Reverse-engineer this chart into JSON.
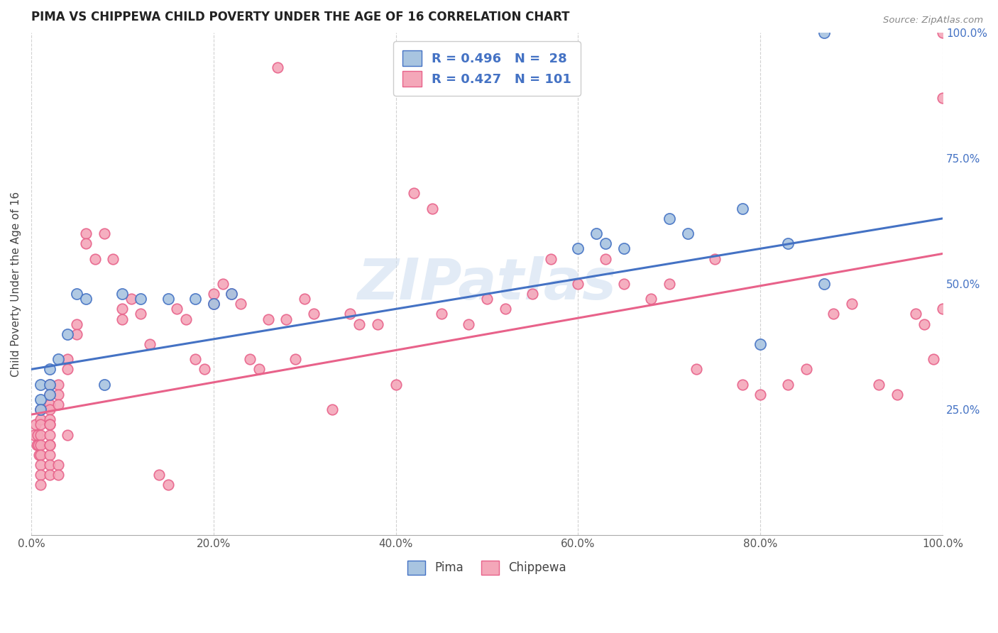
{
  "title": "PIMA VS CHIPPEWA CHILD POVERTY UNDER THE AGE OF 16 CORRELATION CHART",
  "source_text": "Source: ZipAtlas.com",
  "ylabel": "Child Poverty Under the Age of 16",
  "watermark": "ZIPatlas",
  "pima_R": 0.496,
  "pima_N": 28,
  "chippewa_R": 0.427,
  "chippewa_N": 101,
  "pima_color": "#a8c4e0",
  "pima_line_color": "#4472c4",
  "chippewa_color": "#f4a7b9",
  "chippewa_line_color": "#e8628a",
  "legend_text_color": "#4472c4",
  "pima_x": [
    0.01,
    0.01,
    0.01,
    0.02,
    0.02,
    0.02,
    0.03,
    0.04,
    0.05,
    0.06,
    0.08,
    0.1,
    0.12,
    0.15,
    0.18,
    0.2,
    0.22,
    0.6,
    0.62,
    0.63,
    0.65,
    0.7,
    0.72,
    0.78,
    0.8,
    0.83,
    0.87,
    0.87
  ],
  "pima_y": [
    0.3,
    0.27,
    0.25,
    0.33,
    0.3,
    0.28,
    0.35,
    0.4,
    0.48,
    0.47,
    0.3,
    0.48,
    0.47,
    0.47,
    0.47,
    0.46,
    0.48,
    0.57,
    0.6,
    0.58,
    0.57,
    0.63,
    0.6,
    0.65,
    0.38,
    0.58,
    0.5,
    1.0
  ],
  "chippewa_x": [
    0.003,
    0.005,
    0.006,
    0.007,
    0.008,
    0.009,
    0.01,
    0.01,
    0.01,
    0.01,
    0.01,
    0.01,
    0.01,
    0.01,
    0.01,
    0.02,
    0.02,
    0.02,
    0.02,
    0.02,
    0.02,
    0.02,
    0.02,
    0.02,
    0.02,
    0.02,
    0.02,
    0.02,
    0.03,
    0.03,
    0.03,
    0.03,
    0.03,
    0.04,
    0.04,
    0.04,
    0.05,
    0.05,
    0.06,
    0.06,
    0.07,
    0.08,
    0.09,
    0.1,
    0.1,
    0.11,
    0.12,
    0.13,
    0.14,
    0.15,
    0.16,
    0.17,
    0.18,
    0.19,
    0.2,
    0.2,
    0.21,
    0.22,
    0.23,
    0.24,
    0.25,
    0.26,
    0.27,
    0.28,
    0.29,
    0.3,
    0.31,
    0.33,
    0.35,
    0.36,
    0.38,
    0.4,
    0.42,
    0.44,
    0.45,
    0.48,
    0.5,
    0.52,
    0.55,
    0.57,
    0.6,
    0.63,
    0.65,
    0.68,
    0.7,
    0.73,
    0.75,
    0.78,
    0.8,
    0.83,
    0.85,
    0.88,
    0.9,
    0.93,
    0.95,
    0.97,
    0.98,
    0.99,
    1.0,
    1.0,
    1.0
  ],
  "chippewa_y": [
    0.2,
    0.22,
    0.18,
    0.2,
    0.18,
    0.16,
    0.25,
    0.23,
    0.22,
    0.2,
    0.18,
    0.16,
    0.14,
    0.12,
    0.1,
    0.3,
    0.28,
    0.26,
    0.25,
    0.23,
    0.22,
    0.2,
    0.18,
    0.16,
    0.14,
    0.12,
    0.22,
    0.18,
    0.3,
    0.28,
    0.26,
    0.14,
    0.12,
    0.35,
    0.33,
    0.2,
    0.42,
    0.4,
    0.6,
    0.58,
    0.55,
    0.6,
    0.55,
    0.45,
    0.43,
    0.47,
    0.44,
    0.38,
    0.12,
    0.1,
    0.45,
    0.43,
    0.35,
    0.33,
    0.48,
    0.46,
    0.5,
    0.48,
    0.46,
    0.35,
    0.33,
    0.43,
    0.93,
    0.43,
    0.35,
    0.47,
    0.44,
    0.25,
    0.44,
    0.42,
    0.42,
    0.3,
    0.68,
    0.65,
    0.44,
    0.42,
    0.47,
    0.45,
    0.48,
    0.55,
    0.5,
    0.55,
    0.5,
    0.47,
    0.5,
    0.33,
    0.55,
    0.3,
    0.28,
    0.3,
    0.33,
    0.44,
    0.46,
    0.3,
    0.28,
    0.44,
    0.42,
    0.35,
    1.0,
    0.45,
    0.87
  ],
  "xlim": [
    0.0,
    1.0
  ],
  "ylim": [
    0.0,
    1.0
  ],
  "xtick_vals": [
    0.0,
    0.2,
    0.4,
    0.6,
    0.8,
    1.0
  ],
  "xtick_labels": [
    "0.0%",
    "20.0%",
    "40.0%",
    "60.0%",
    "80.0%",
    "100.0%"
  ],
  "ytick_vals_right": [
    0.25,
    0.5,
    0.75,
    1.0
  ],
  "ytick_labels_right": [
    "25.0%",
    "50.0%",
    "75.0%",
    "100.0%"
  ],
  "grid_color": "#cccccc",
  "background_color": "#ffffff",
  "pima_line_intercept": 0.33,
  "pima_line_slope": 0.3,
  "chippewa_line_intercept": 0.24,
  "chippewa_line_slope": 0.32
}
